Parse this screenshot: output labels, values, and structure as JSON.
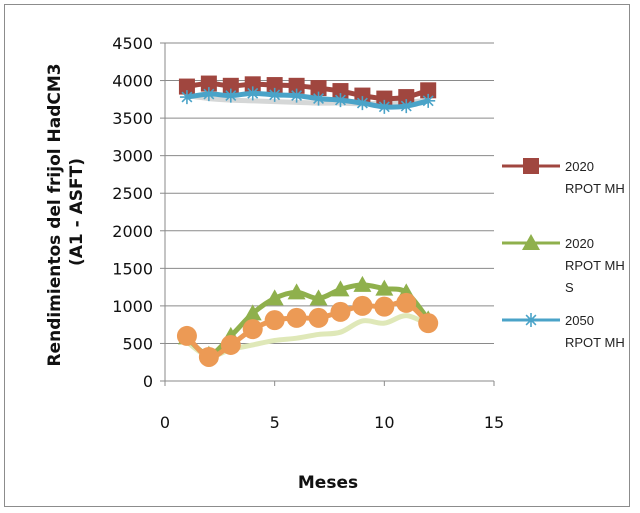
{
  "chart_data": {
    "type": "line",
    "xlabel": "Meses",
    "ylabel": "Rendimientos del frijol HadCM3 (A1 - ASFT)",
    "ylabel_lines": [
      "Rendimientos del frijol HadCM3",
      "(A1 - ASFT)"
    ],
    "xlim": [
      0,
      15
    ],
    "ylim": [
      0,
      4500
    ],
    "x_ticks": [
      "0",
      "5",
      "10",
      "15"
    ],
    "y_ticks": [
      "0",
      "500",
      "1000",
      "1500",
      "2000",
      "2500",
      "3000",
      "3500",
      "4000",
      "4500"
    ],
    "grid": "horizontal",
    "legend_position": "right",
    "series": [
      {
        "name": "2020 RPOT MH",
        "name_lines": [
          "2020",
          "RPOT MH"
        ],
        "color": "#a0463f",
        "marker": "square",
        "in_legend": true,
        "x": [
          1,
          2,
          3,
          4,
          5,
          6,
          7,
          8,
          9,
          10,
          11,
          12
        ],
        "values": [
          3920,
          3960,
          3930,
          3950,
          3940,
          3930,
          3900,
          3860,
          3800,
          3760,
          3780,
          3870
        ]
      },
      {
        "name": "2020 RPOT MH S",
        "name_lines": [
          "2020",
          "RPOT MH",
          "S"
        ],
        "color": "#8fb04c",
        "marker": "triangle",
        "in_legend": true,
        "x": [
          1,
          2,
          3,
          4,
          5,
          6,
          7,
          8,
          9,
          10,
          11,
          12
        ],
        "values": [
          580,
          350,
          600,
          900,
          1100,
          1180,
          1100,
          1220,
          1280,
          1230,
          1180,
          820
        ]
      },
      {
        "name": "2050 RPOT MH",
        "name_lines": [
          "2050",
          "RPOT MH"
        ],
        "color": "#4aa3c8",
        "marker": "star",
        "in_legend": true,
        "x": [
          1,
          2,
          3,
          4,
          5,
          6,
          7,
          8,
          9,
          10,
          11,
          12
        ],
        "values": [
          3780,
          3820,
          3800,
          3830,
          3810,
          3800,
          3760,
          3740,
          3700,
          3650,
          3660,
          3730
        ]
      },
      {
        "name": "",
        "color": "#d5d7d7",
        "marker": "none",
        "in_legend": false,
        "x": [
          1,
          2,
          3,
          4,
          5,
          6,
          7,
          8,
          9,
          10,
          11,
          12
        ],
        "values": [
          3800,
          3760,
          3740,
          3730,
          3720,
          3710,
          3700,
          3700,
          3690,
          3700,
          3710,
          3740
        ]
      },
      {
        "name": "",
        "color": "#dfe8b8",
        "marker": "none",
        "in_legend": false,
        "x": [
          1,
          2,
          3,
          4,
          5,
          6,
          7,
          8,
          9,
          10,
          11,
          12
        ],
        "values": [
          520,
          330,
          420,
          480,
          540,
          570,
          620,
          650,
          800,
          770,
          870,
          750
        ]
      },
      {
        "name": "",
        "color": "#ec9a55",
        "marker": "circle",
        "in_legend": false,
        "x": [
          1,
          2,
          3,
          4,
          5,
          6,
          7,
          8,
          9,
          10,
          11,
          12
        ],
        "values": [
          600,
          320,
          480,
          690,
          810,
          840,
          840,
          920,
          1000,
          990,
          1040,
          770
        ]
      }
    ]
  }
}
